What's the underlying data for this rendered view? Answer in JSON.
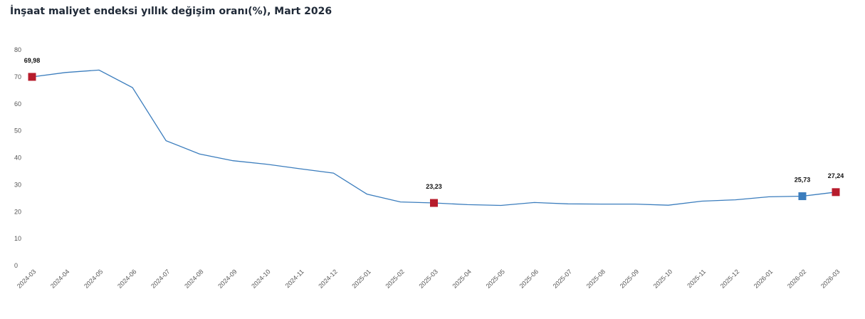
{
  "chart_data": {
    "type": "line",
    "title": "İnşaat maliyet endeksi yıllık değişim oranı(%), Mart 2026",
    "xlabel": "",
    "ylabel": "",
    "ylim": [
      0,
      80
    ],
    "yticks": [
      "0",
      "10",
      "20",
      "30",
      "40",
      "50",
      "60",
      "70",
      "80"
    ],
    "grid": false,
    "legend": "none",
    "x": [
      "2024-03",
      "2024-04",
      "2024-05",
      "2024-06",
      "2024-07",
      "2024-08",
      "2024-09",
      "2024-10",
      "2024-11",
      "2024-12",
      "2025-01",
      "2025-02",
      "2025-03",
      "2025-04",
      "2025-05",
      "2025-06",
      "2025-07",
      "2025-08",
      "2025-09",
      "2025-10",
      "2025-11",
      "2025-12",
      "2026-01",
      "2026-02",
      "2026-03"
    ],
    "series": [
      {
        "values": [
          69.98,
          71.6,
          72.5,
          66.0,
          46.3,
          41.4,
          38.9,
          37.6,
          35.9,
          34.3,
          26.5,
          23.6,
          23.23,
          22.6,
          22.3,
          23.4,
          22.9,
          22.8,
          22.8,
          22.4,
          23.9,
          24.4,
          25.5,
          25.73,
          27.24
        ],
        "color": "#3b7dbd"
      }
    ],
    "highlights": [
      {
        "x": "2024-03",
        "value": 69.98,
        "label": "69,98",
        "color": "#b71c2c"
      },
      {
        "x": "2025-03",
        "value": 23.23,
        "label": "23,23",
        "color": "#b71c2c"
      },
      {
        "x": "2026-02",
        "value": 25.73,
        "label": "25,73",
        "color": "#3b7dbd"
      },
      {
        "x": "2026-03",
        "value": 27.24,
        "label": "27,24",
        "color": "#b71c2c"
      }
    ]
  }
}
